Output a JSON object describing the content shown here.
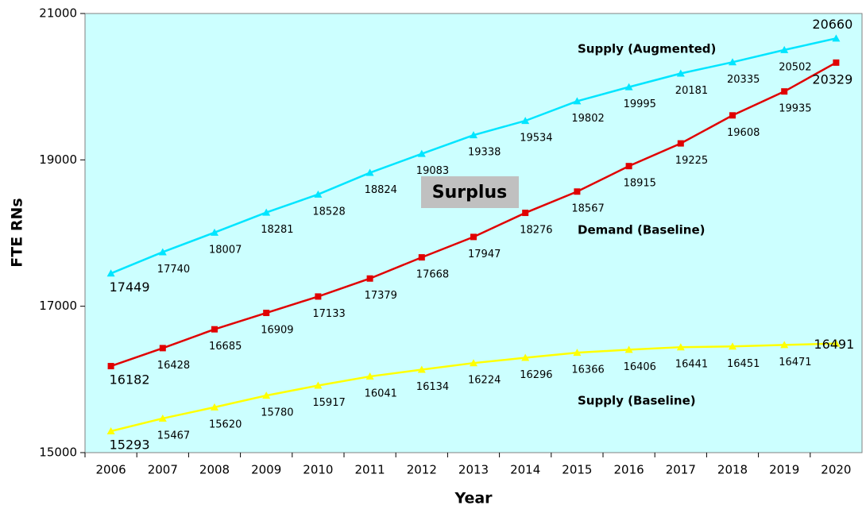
{
  "chart_data": {
    "type": "line",
    "x_label": "Year",
    "y_label": "FTE RNs",
    "categories": [
      "2006",
      "2007",
      "2008",
      "2009",
      "2010",
      "2011",
      "2012",
      "2013",
      "2014",
      "2015",
      "2016",
      "2017",
      "2018",
      "2019",
      "2020"
    ],
    "series": [
      {
        "name": "Supply (Augmented)",
        "color": "#00e5ff",
        "marker": "triangle",
        "values": [
          17449,
          17740,
          18007,
          18281,
          18528,
          18824,
          19083,
          19338,
          19534,
          19802,
          19995,
          20181,
          20335,
          20502,
          20660
        ]
      },
      {
        "name": "Demand (Baseline)",
        "color": "#e00000",
        "marker": "square",
        "values": [
          16182,
          16428,
          16685,
          16909,
          17133,
          17379,
          17668,
          17947,
          18276,
          18567,
          18915,
          19225,
          19608,
          19935,
          20329
        ]
      },
      {
        "name": "Supply (Baseline)",
        "color": "#ffff00",
        "marker": "triangle",
        "values": [
          15293,
          15467,
          15620,
          15780,
          15917,
          16041,
          16134,
          16224,
          16296,
          16366,
          16406,
          16441,
          16451,
          16471,
          16491
        ]
      }
    ],
    "annotations": [
      "Surplus"
    ],
    "ylim": [
      15000,
      21000
    ],
    "yticks": [
      15000,
      17000,
      19000,
      21000
    ],
    "grid": false,
    "background": "#ccffff"
  }
}
